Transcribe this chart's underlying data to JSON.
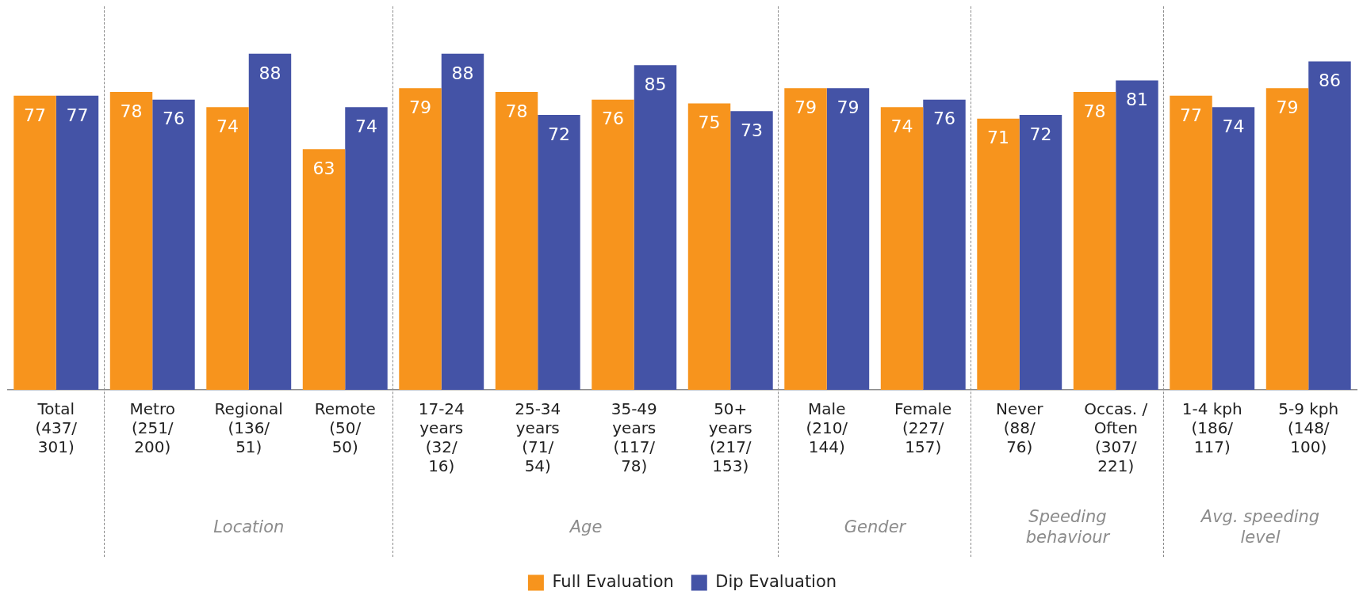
{
  "chart_data": {
    "type": "bar",
    "categories": [
      "Total\n(437/\n301)",
      "Metro\n(251/\n200)",
      "Regional\n(136/\n51)",
      "Remote\n(50/\n50)",
      "17-24\nyears\n(32/\n16)",
      "25-34\nyears\n(71/\n54)",
      "35-49\nyears\n(117/\n78)",
      "50+\nyears\n(217/\n153)",
      "Male\n(210/\n144)",
      "Female\n(227/\n157)",
      "Never\n(88/\n76)",
      "Occas. /\nOften\n(307/\n221)",
      "1-4 kph\n(186/\n117)",
      "5-9 kph\n(148/\n100)"
    ],
    "series": [
      {
        "name": "Full Evaluation",
        "color": "#f7941d",
        "values": [
          77,
          78,
          74,
          63,
          79,
          78,
          76,
          75,
          79,
          74,
          71,
          78,
          77,
          79
        ]
      },
      {
        "name": "Dip Evaluation",
        "color": "#4453a6",
        "values": [
          77,
          76,
          88,
          74,
          88,
          72,
          85,
          73,
          79,
          76,
          72,
          81,
          74,
          86
        ]
      }
    ],
    "ylim": [
      0,
      100
    ],
    "tick_labels": "x",
    "grid": false,
    "legend": "bottom",
    "data_labels": true,
    "annotations": [
      "Location",
      "Age",
      "Gender",
      "Speeding\nbehaviour",
      "Avg. speeding\nlevel"
    ]
  }
}
